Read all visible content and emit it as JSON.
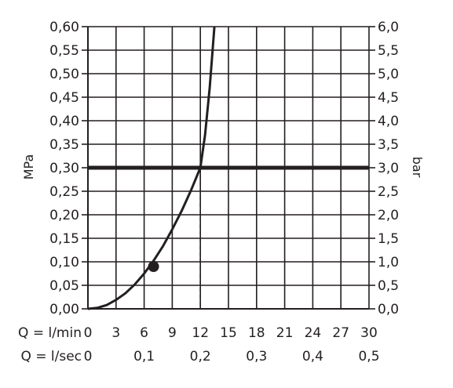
{
  "chart_data": {
    "type": "line",
    "title": "",
    "left_axis_label": "MPa",
    "right_axis_label": "bar",
    "x_rows": [
      {
        "label": "Q = l/min",
        "ticks": [
          "0",
          "3",
          "6",
          "9",
          "12",
          "15",
          "18",
          "21",
          "24",
          "27",
          "30"
        ],
        "values": [
          0,
          3,
          6,
          9,
          12,
          15,
          18,
          21,
          24,
          27,
          30
        ]
      },
      {
        "label": "Q = l/sec",
        "ticks": [
          "0",
          "0,1",
          "0,2",
          "0,3",
          "0,4",
          "0,5"
        ],
        "values": [
          0,
          6,
          12,
          18,
          24,
          30
        ]
      }
    ],
    "xlim": [
      0,
      30
    ],
    "ylim": [
      0,
      0.6
    ],
    "y_left_ticks": [
      "0,00",
      "0,05",
      "0,10",
      "0,15",
      "0,20",
      "0,25",
      "0,30",
      "0,35",
      "0,40",
      "0,45",
      "0,50",
      "0,55",
      "0,60"
    ],
    "y_right_ticks": [
      "0,0",
      "0,5",
      "1,0",
      "1,5",
      "2,0",
      "2,5",
      "3,0",
      "3,5",
      "4,0",
      "4,5",
      "5,0",
      "5,5",
      "6,0"
    ],
    "grid": true,
    "series": [
      {
        "x": [
          0,
          1,
          2,
          3,
          4,
          5,
          6,
          7,
          8,
          9,
          10,
          11,
          12,
          12.5,
          13,
          13.5
        ],
        "y": [
          0,
          0.002,
          0.008,
          0.019,
          0.033,
          0.052,
          0.075,
          0.102,
          0.133,
          0.169,
          0.208,
          0.252,
          0.3,
          0.37,
          0.47,
          0.6
        ]
      }
    ],
    "reference_line": {
      "y": 0.3
    },
    "operating_point": {
      "x": 12,
      "y": 0.3
    },
    "marker_point": {
      "x": 7,
      "y": 0.09
    }
  }
}
